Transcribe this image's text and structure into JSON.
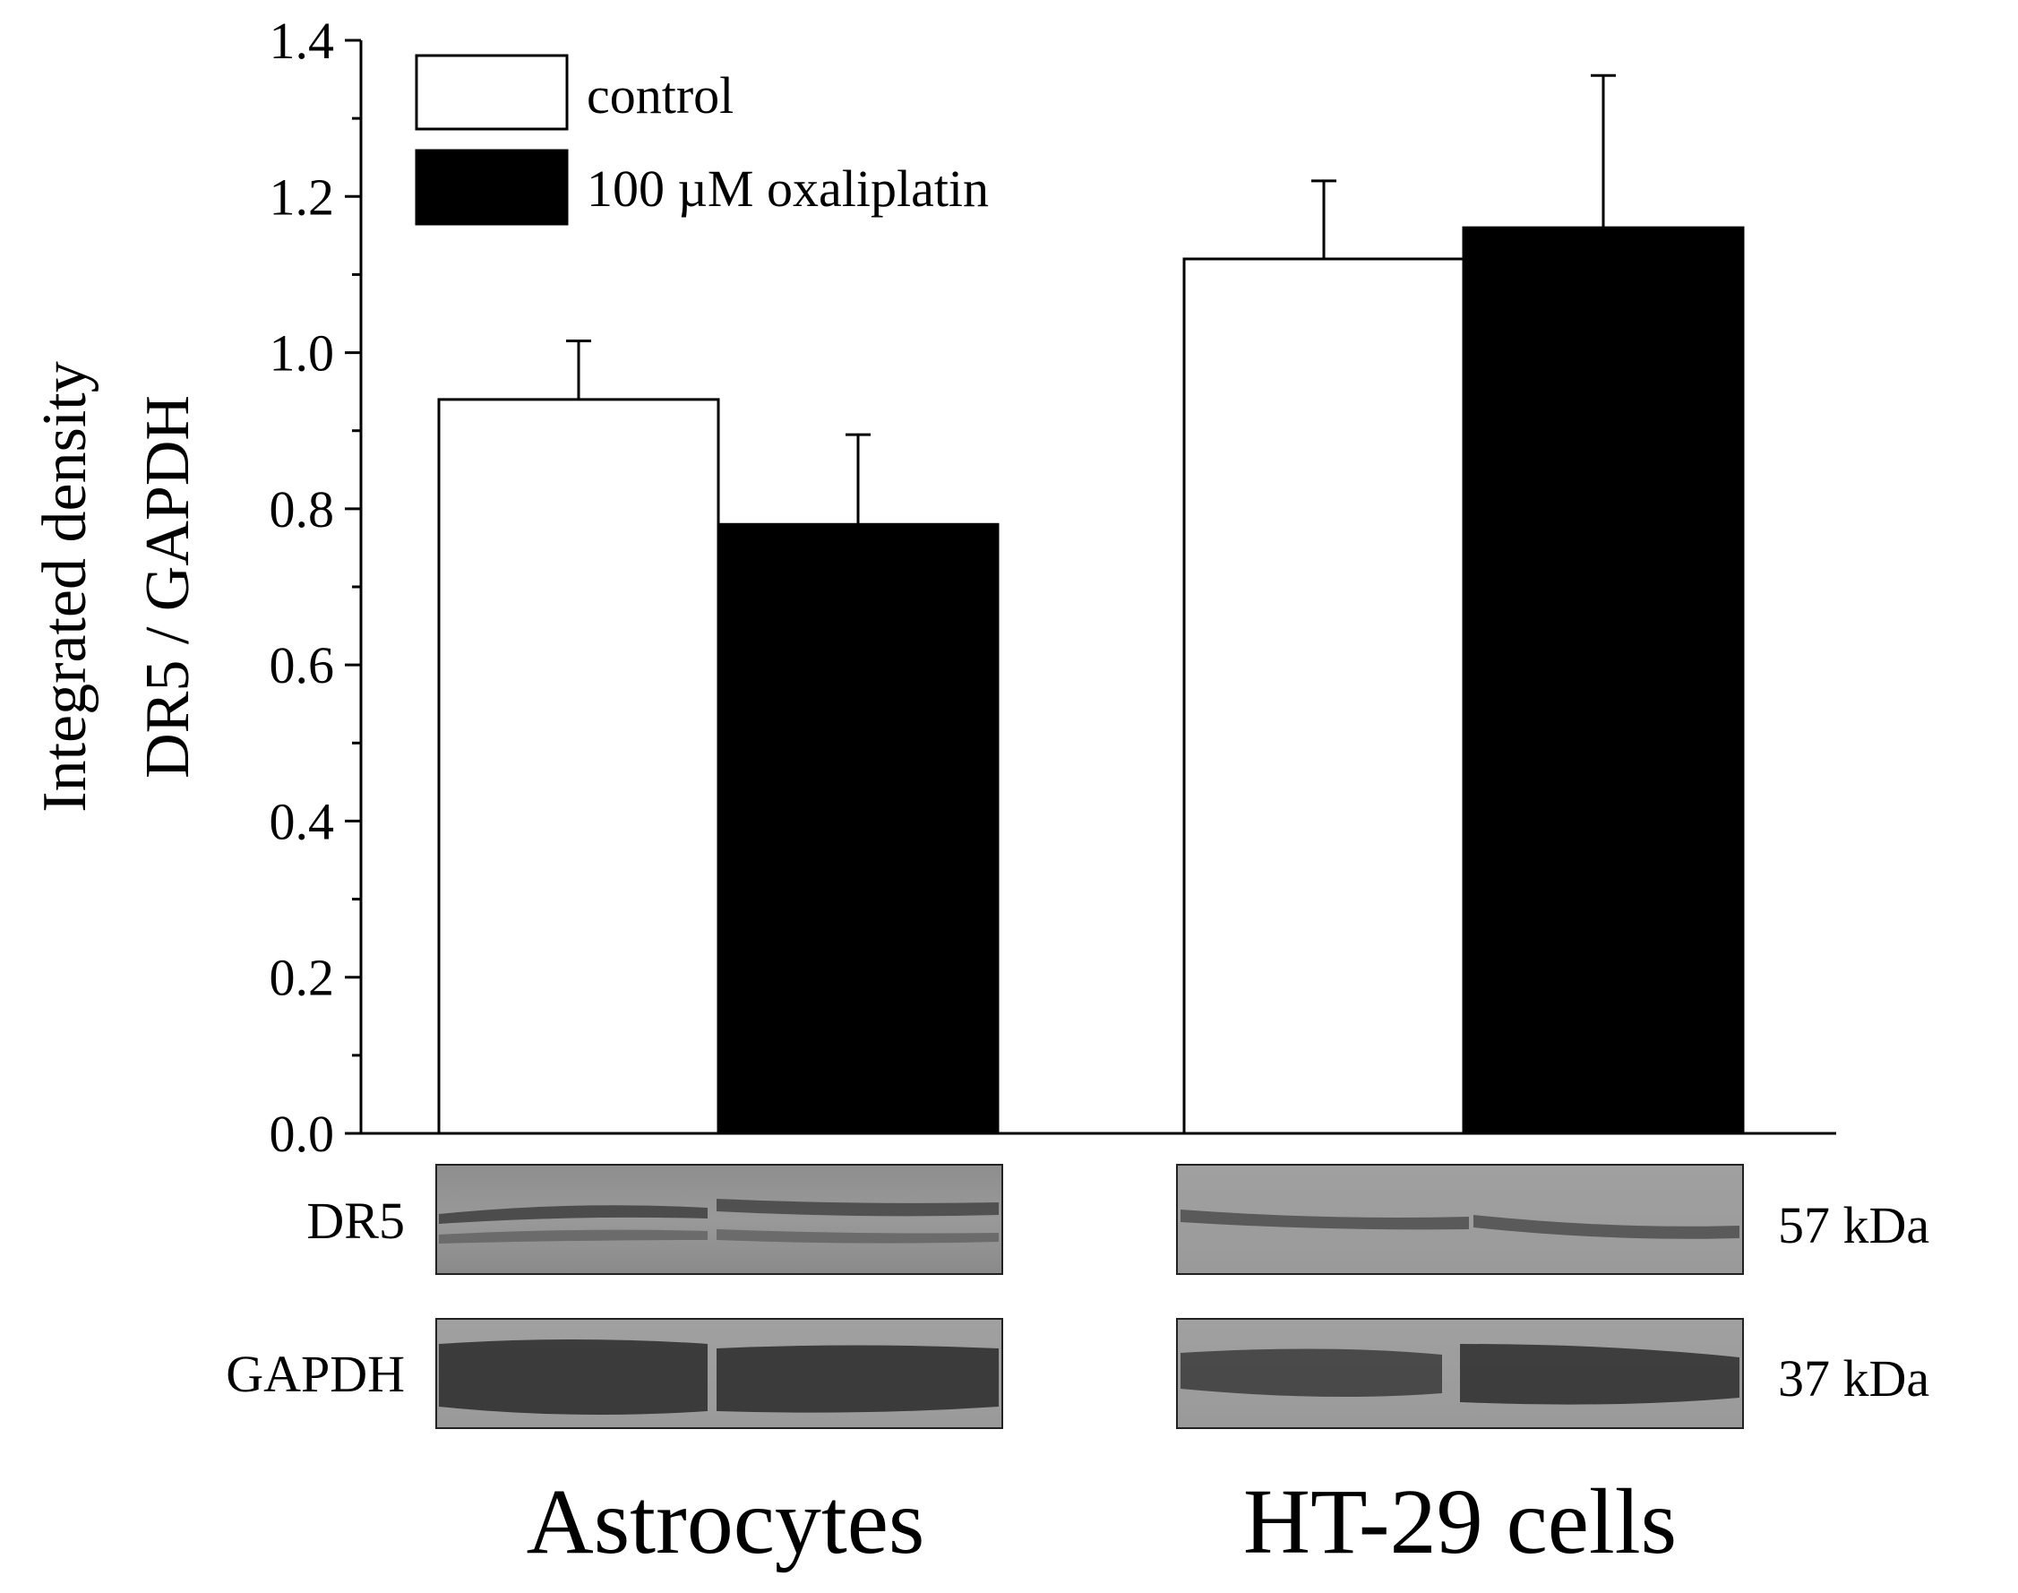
{
  "chart_data": {
    "type": "bar",
    "categories": [
      "Astrocytes",
      "HT-29 cells"
    ],
    "series": [
      {
        "name": "control",
        "color": "#ffffff",
        "values": [
          0.94,
          1.12
        ],
        "errors": [
          0.075,
          0.1
        ]
      },
      {
        "name": "100 µM oxaliplatin",
        "color": "#000000",
        "values": [
          0.78,
          1.16
        ],
        "errors": [
          0.115,
          0.195
        ]
      }
    ],
    "ylabel_line1": "Integrated density",
    "ylabel_line2": "DR5 / GAPDH",
    "ylim": [
      0,
      1.4
    ],
    "yticks": [
      "0.0",
      "0.2",
      "0.4",
      "0.6",
      "0.8",
      "1.0",
      "1.2",
      "1.4"
    ],
    "grid": false,
    "legend_position": "top-left"
  },
  "blots": {
    "rows": [
      {
        "label": "DR5",
        "kda": "57 kDa"
      },
      {
        "label": "GAPDH",
        "kda": "37 kDa"
      }
    ]
  }
}
